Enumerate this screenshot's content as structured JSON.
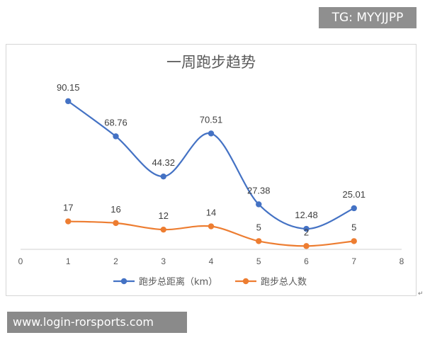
{
  "banner_top": "TG: MYYJJPP",
  "banner_bottom": "www.login-rorsports.com",
  "corner_mark": "↵",
  "chart_data": {
    "type": "line",
    "title": "一周跑步趋势",
    "xlabel": "",
    "ylabel": "",
    "xlim": [
      0,
      8
    ],
    "ylim": [
      0,
      100
    ],
    "x_ticks": [
      "0",
      "1",
      "2",
      "3",
      "4",
      "5",
      "6",
      "7",
      "8"
    ],
    "grid": false,
    "smooth": true,
    "legend_position": "bottom",
    "series": [
      {
        "name": "跑步总距离（km）",
        "color": "#4472C4",
        "marker": "circle",
        "x": [
          1,
          2,
          3,
          4,
          5,
          6,
          7
        ],
        "values": [
          90.15,
          68.76,
          44.32,
          70.51,
          27.38,
          12.48,
          25.01
        ],
        "labels": [
          "90.15",
          "68.76",
          "44.32",
          "70.51",
          "27.38",
          "12.48",
          "25.01"
        ]
      },
      {
        "name": "跑步总人数",
        "color": "#ED7D31",
        "marker": "circle",
        "x": [
          1,
          2,
          3,
          4,
          5,
          6,
          7
        ],
        "values": [
          17,
          16,
          12,
          14,
          5,
          2,
          5
        ],
        "labels": [
          "17",
          "16",
          "12",
          "14",
          "5",
          "2",
          "5"
        ]
      }
    ]
  }
}
